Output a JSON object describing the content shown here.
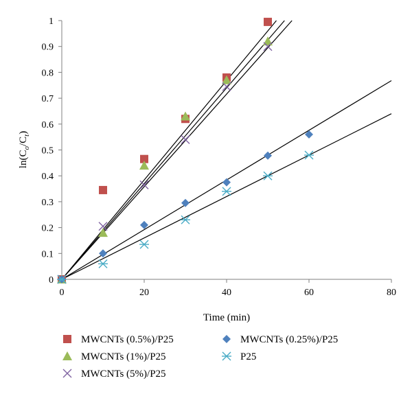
{
  "chart_data": {
    "type": "scatter",
    "xlabel": "Time (min)",
    "ylabel": "ln(C_o/C_t)",
    "xlim": [
      0,
      80
    ],
    "ylim": [
      0,
      1
    ],
    "x_ticks": [
      "0",
      "20",
      "40",
      "60",
      "80"
    ],
    "y_ticks": [
      "0",
      "0.1",
      "0.2",
      "0.3",
      "0.4",
      "0.5",
      "0.6",
      "0.7",
      "0.8",
      "0.9",
      "1"
    ],
    "grid": false,
    "legend_position": "bottom",
    "series": [
      {
        "name": "MWCNTs (0.5%)/P25",
        "marker": "square",
        "color": "#c0504d",
        "x": [
          0,
          10,
          20,
          30,
          40,
          50
        ],
        "y": [
          0,
          0.345,
          0.465,
          0.62,
          0.78,
          0.995
        ],
        "trendline_slope": 0.0192
      },
      {
        "name": "MWCNTs (1%)/P25",
        "marker": "triangle",
        "color": "#9bbb59",
        "x": [
          0,
          10,
          20,
          30,
          40,
          50
        ],
        "y": [
          0,
          0.18,
          0.44,
          0.63,
          0.77,
          0.92
        ],
        "trendline_slope": 0.0185
      },
      {
        "name": "MWCNTs (5%)/P25",
        "marker": "x",
        "color": "#8064a2",
        "x": [
          0,
          10,
          20,
          30,
          40,
          50
        ],
        "y": [
          0,
          0.205,
          0.365,
          0.54,
          0.745,
          0.9
        ],
        "trendline_slope": 0.0179
      },
      {
        "name": "MWCNTs (0.25%)/P25",
        "marker": "diamond",
        "color": "#4f81bd",
        "x": [
          0,
          10,
          20,
          30,
          40,
          50,
          60
        ],
        "y": [
          0,
          0.1,
          0.21,
          0.295,
          0.375,
          0.478,
          0.56
        ],
        "trendline_slope": 0.0096
      },
      {
        "name": "P25",
        "marker": "asterisk",
        "color": "#4bacc6",
        "x": [
          0,
          10,
          20,
          30,
          40,
          50,
          60
        ],
        "y": [
          0,
          0.06,
          0.135,
          0.23,
          0.34,
          0.4,
          0.48
        ],
        "trendline_slope": 0.008
      }
    ]
  }
}
